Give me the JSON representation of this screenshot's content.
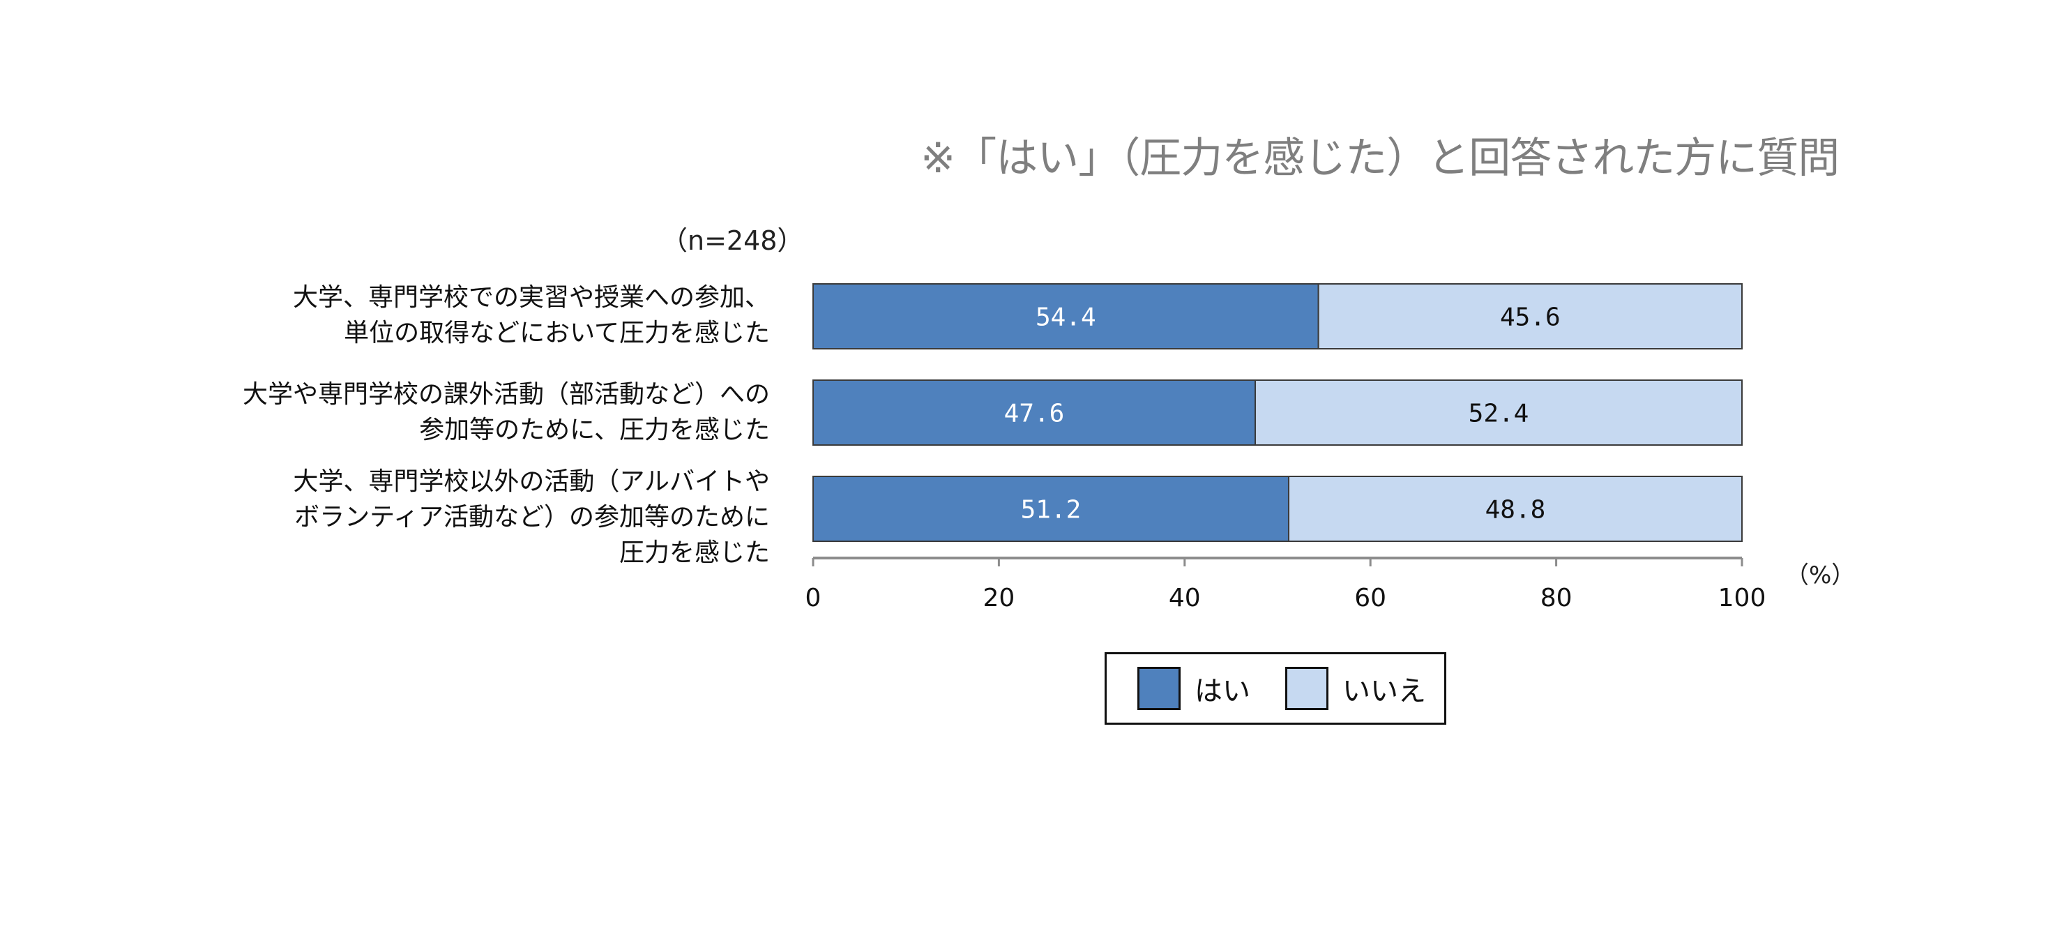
{
  "title": "※「はい」（圧力を感じた）と回答された方に質問",
  "sample_size": "（n=248）",
  "units": "（%）",
  "legend": [
    {
      "label": "はい",
      "color": "#4f81bd"
    },
    {
      "label": "いいえ",
      "color": "#c6d9f1"
    }
  ],
  "category_labels": [
    [
      "大学、専門学校での実習や授業への参加、",
      "単位の取得などにおいて圧力を感じた"
    ],
    [
      "大学や専門学校の課外活動（部活動など）への",
      "参加等のために、圧力を感じた"
    ],
    [
      "大学、専門学校以外の活動（アルバイトや",
      "ボランティア活動など）の参加等のために",
      "圧力を感じた"
    ]
  ],
  "chart_data": {
    "type": "bar",
    "orientation": "horizontal",
    "stacked": true,
    "categories": [
      "大学、専門学校での実習や授業への参加、単位の取得などにおいて圧力を感じた",
      "大学や専門学校の課外活動（部活動など）への参加等のために、圧力を感じた",
      "大学、専門学校以外の活動（アルバイトやボランティア活動など）の参加等のために圧力を感じた"
    ],
    "series": [
      {
        "name": "はい",
        "values": [
          54.4,
          47.6,
          51.2
        ],
        "labels": [
          "54.4",
          "47.6",
          "51.2"
        ],
        "color": "#4f81bd",
        "label_color": "#ffffff"
      },
      {
        "name": "いいえ",
        "values": [
          45.6,
          52.4,
          48.8
        ],
        "labels": [
          "45.6",
          "52.4",
          "48.8"
        ],
        "color": "#c6d9f1",
        "label_color": "#111111"
      }
    ],
    "xlim": [
      0,
      100
    ],
    "x_ticks": [
      0,
      20,
      40,
      60,
      80,
      100
    ],
    "xlabel": "",
    "ylabel": "",
    "grid": false,
    "legend_position": "bottom"
  }
}
